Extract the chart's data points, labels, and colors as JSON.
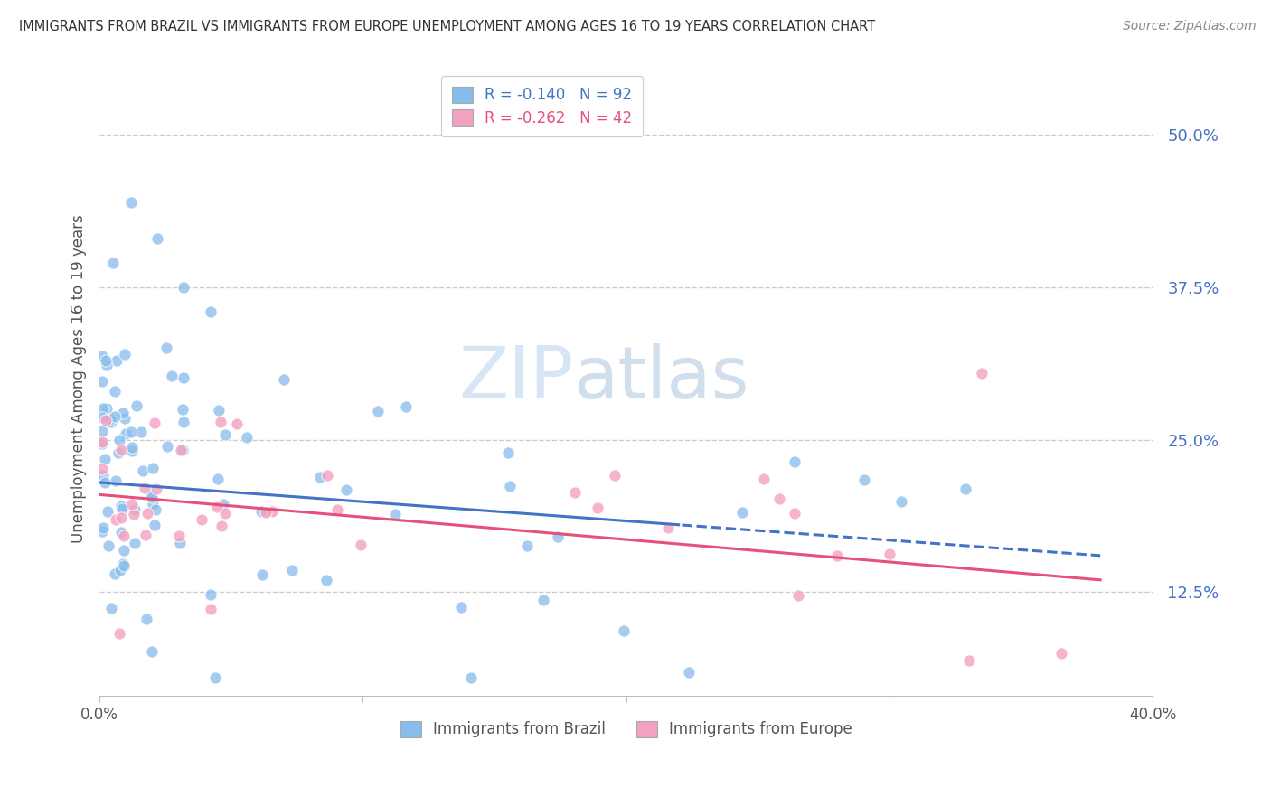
{
  "title": "IMMIGRANTS FROM BRAZIL VS IMMIGRANTS FROM EUROPE UNEMPLOYMENT AMONG AGES 16 TO 19 YEARS CORRELATION CHART",
  "source": "Source: ZipAtlas.com",
  "ylabel": "Unemployment Among Ages 16 to 19 years",
  "ytick_vals": [
    0.125,
    0.25,
    0.375,
    0.5
  ],
  "ytick_labels": [
    "12.5%",
    "25.0%",
    "37.5%",
    "50.0%"
  ],
  "xlim": [
    0.0,
    0.4
  ],
  "ylim": [
    0.04,
    0.56
  ],
  "color_brazil": "#87BCEC",
  "color_europe": "#F4A0C0",
  "line_color_brazil": "#4472C4",
  "line_color_europe": "#E8507A",
  "ytick_color": "#4472C4",
  "xtick_color": "#555555",
  "brazil_line_start_y": 0.215,
  "brazil_line_end_y": 0.155,
  "europe_line_start_y": 0.205,
  "europe_line_end_y": 0.135,
  "brazil_line_x_end": 0.38,
  "europe_line_x_end": 0.38
}
